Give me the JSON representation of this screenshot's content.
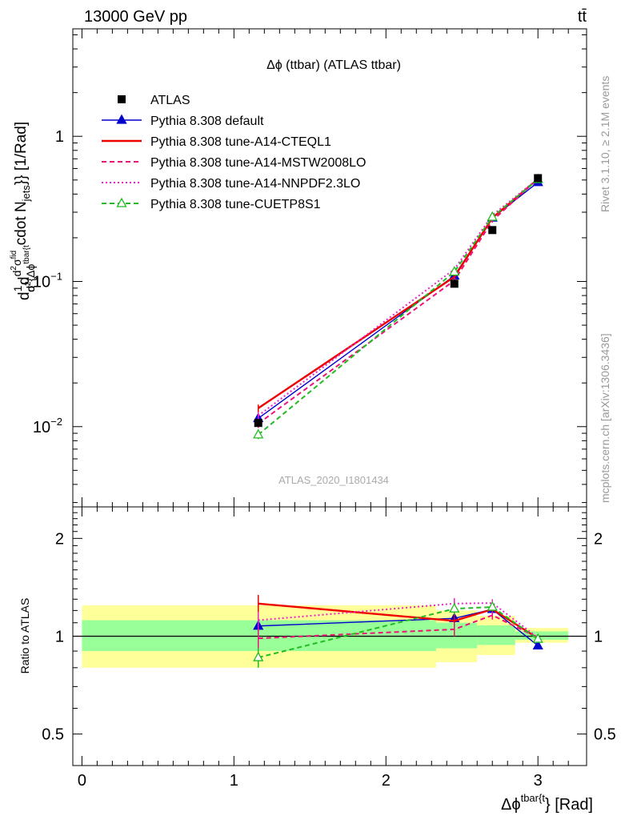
{
  "header": {
    "left": "13000 GeV pp",
    "right": "tt̄"
  },
  "side_labels": {
    "rivet": "Rivet 3.1.10, ≥ 2.1M events",
    "mcplots": "mcplots.cern.ch [arXiv:1306.3436]"
  },
  "chart_data": [
    {
      "type": "line",
      "panel": "main",
      "title": "Δϕ (ttbar) (ATLAS ttbar)",
      "watermark": "ATLAS_2020_I1801434",
      "ylabel": "d1/σ d d²σ^fid / d² {Δϕ^tbar{t}} cdot N_jets}} [1/Rad]",
      "ylabel_parts": {
        "prefix": "d",
        "frac_1": "1",
        "frac_sigma": "σ",
        "d_mid": "d",
        "num": "d",
        "num_sup": "2",
        "num_sigma": "σ",
        "num_sup2": "fid",
        "den": "d",
        "den_sup": "2",
        "den_rest": "{Δϕ",
        "den_sup2": "tbar{t",
        "suffix": "cdot N",
        "suffix_sub": "jets",
        "suffix_end": "}} [1/Rad]"
      },
      "yscale": "log",
      "ylim": [
        0.0028,
        5.5
      ],
      "yticks": [
        {
          "value": 0.01,
          "base": "10",
          "exp": "−2"
        },
        {
          "value": 0.1,
          "base": "10",
          "exp": "−1"
        },
        {
          "value": 1,
          "base": "1",
          "exp": ""
        }
      ],
      "xlim": [
        -0.06,
        3.32
      ],
      "legend_position": "top-left",
      "data": {
        "name": "ATLAS",
        "x": [
          1.16,
          2.45,
          2.7,
          3.0
        ],
        "y": [
          0.0106,
          0.0965,
          0.226,
          0.515
        ]
      },
      "series": [
        {
          "name": "Pythia 8.308 default",
          "color": "#0000cc",
          "dash": "solid",
          "marker": "triangle-filled",
          "x": [
            1.16,
            2.45,
            2.7,
            3.0
          ],
          "y": [
            0.0114,
            0.1095,
            0.274,
            0.482
          ],
          "err": [
            0.0007,
            0.005,
            0.008,
            0.01
          ]
        },
        {
          "name": "Pythia 8.308 tune-A14-CTEQL1",
          "color": "#ee0000",
          "dash": "solid",
          "marker": "none",
          "x": [
            1.16,
            2.45,
            2.7,
            3.0
          ],
          "y": [
            0.0134,
            0.1075,
            0.274,
            0.508
          ],
          "err": [
            0.0008,
            0.005,
            0.008,
            0.01
          ]
        },
        {
          "name": "Pythia 8.308 tune-A14-MSTW2008LO",
          "color": "#ee1177",
          "dash": "dashed",
          "marker": "none",
          "x": [
            1.16,
            2.45,
            2.7,
            3.0
          ],
          "y": [
            0.0105,
            0.1015,
            0.262,
            0.51
          ],
          "err": [
            0.0007,
            0.005,
            0.008,
            0.01
          ]
        },
        {
          "name": "Pythia 8.308 tune-A14-NNPDF2.3LO",
          "color": "#ee22cc",
          "dash": "dotted",
          "marker": "none",
          "x": [
            1.16,
            2.45,
            2.7,
            3.0
          ],
          "y": [
            0.0119,
            0.1215,
            0.286,
            0.51
          ],
          "err": [
            0.0007,
            0.005,
            0.008,
            0.01
          ]
        },
        {
          "name": "Pythia 8.308 tune-CUETP8S1",
          "color": "#22bb22",
          "dash": "dashed",
          "marker": "triangle-open",
          "x": [
            1.16,
            2.45,
            2.7,
            3.0
          ],
          "y": [
            0.0088,
            0.1165,
            0.278,
            0.505
          ],
          "err": [
            0.0006,
            0.005,
            0.008,
            0.01
          ]
        }
      ]
    },
    {
      "type": "line",
      "panel": "ratio",
      "ylabel": "Ratio to ATLAS",
      "xlabel": "Δϕ^tbar{t}} [Rad]",
      "xlabel_parts": {
        "main": "Δϕ",
        "sup": "tbar{t",
        "end": "} [Rad]"
      },
      "yscale": "log",
      "ylim": [
        0.4,
        2.5
      ],
      "yticks": [
        0.5,
        1,
        2
      ],
      "xticks": [
        0,
        1,
        2,
        3
      ],
      "xlim": [
        -0.06,
        3.32
      ],
      "reference": 1,
      "bands": [
        {
          "x0": 0.0,
          "x1": 2.33,
          "green": [
            0.9,
            1.12
          ],
          "yellow": [
            0.8,
            1.245
          ]
        },
        {
          "x0": 2.33,
          "x1": 2.6,
          "green": [
            0.918,
            1.1
          ],
          "yellow": [
            0.832,
            1.2
          ]
        },
        {
          "x0": 2.6,
          "x1": 2.85,
          "green": [
            0.94,
            1.08
          ],
          "yellow": [
            0.875,
            1.155
          ]
        },
        {
          "x0": 2.85,
          "x1": 3.2,
          "green": [
            0.975,
            1.035
          ],
          "yellow": [
            0.955,
            1.06
          ]
        }
      ],
      "series": [
        {
          "name": "Pythia 8.308 default",
          "color": "#0000cc",
          "dash": "solid",
          "marker": "triangle-filled",
          "x": [
            1.16,
            2.45,
            2.7,
            3.0
          ],
          "y": [
            1.075,
            1.135,
            1.21,
            0.935
          ],
          "err": [
            0.07,
            0.05,
            0.035,
            0.02
          ]
        },
        {
          "name": "Pythia 8.308 tune-A14-CTEQL1",
          "color": "#ee0000",
          "dash": "solid",
          "marker": "none",
          "x": [
            1.16,
            2.45,
            2.7,
            3.0
          ],
          "y": [
            1.26,
            1.115,
            1.21,
            0.985
          ],
          "err": [
            0.08,
            0.05,
            0.035,
            0.02
          ]
        },
        {
          "name": "Pythia 8.308 tune-A14-MSTW2008LO",
          "color": "#ee1177",
          "dash": "dashed",
          "marker": "none",
          "x": [
            1.16,
            2.45,
            2.7,
            3.0
          ],
          "y": [
            0.985,
            1.05,
            1.16,
            0.99
          ],
          "err": [
            0.07,
            0.05,
            0.035,
            0.02
          ]
        },
        {
          "name": "Pythia 8.308 tune-A14-NNPDF2.3LO",
          "color": "#ee22cc",
          "dash": "dotted",
          "marker": "none",
          "x": [
            1.16,
            2.45,
            2.7,
            3.0
          ],
          "y": [
            1.12,
            1.26,
            1.265,
            0.99
          ],
          "err": [
            0.07,
            0.05,
            0.035,
            0.02
          ]
        },
        {
          "name": "Pythia 8.308 tune-CUETP8S1",
          "color": "#22bb22",
          "dash": "dashed",
          "marker": "triangle-open",
          "x": [
            1.16,
            2.45,
            2.7,
            3.0
          ],
          "y": [
            0.86,
            1.215,
            1.23,
            0.98
          ],
          "err": [
            0.06,
            0.05,
            0.035,
            0.02
          ]
        }
      ]
    }
  ]
}
